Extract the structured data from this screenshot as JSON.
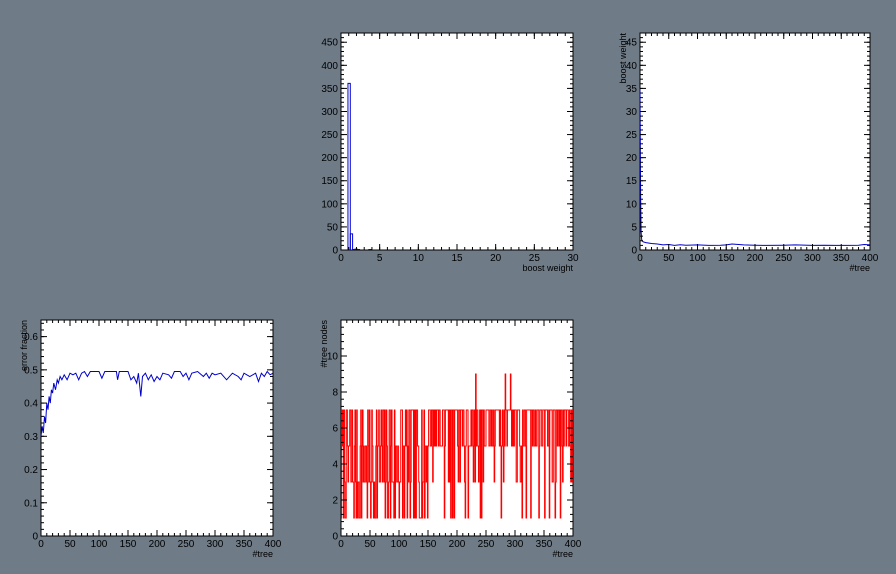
{
  "colors": {
    "background": "#6f7b87",
    "plot_background": "#ffffff",
    "blue_series": "#0000cc",
    "red_series": "#ff0000"
  },
  "chart_data": [
    {
      "id": "boost-weight-histogram",
      "type": "bar",
      "title": "",
      "xlabel": "boost weight",
      "ylabel": "",
      "xlim": [
        0,
        30
      ],
      "ylim": [
        0,
        470
      ],
      "xticks": [
        0,
        5,
        10,
        15,
        20,
        25,
        30
      ],
      "yticks": [
        0,
        50,
        100,
        150,
        200,
        250,
        300,
        350,
        400,
        450
      ],
      "bin_width": 0.3,
      "bins": [
        {
          "x0": 0.9,
          "value": 361
        },
        {
          "x0": 1.2,
          "value": 35
        },
        {
          "x0": 1.5,
          "value": 1
        },
        {
          "x0": 1.8,
          "value": 2
        },
        {
          "x0": 2.1,
          "value": 1
        },
        {
          "x0": 2.4,
          "value": 0
        },
        {
          "x0": 2.7,
          "value": 0
        },
        {
          "x0": 3.0,
          "value": 0
        },
        {
          "x0": 3.3,
          "value": 0
        },
        {
          "x0": 3.6,
          "value": 1
        }
      ],
      "series_color": "#0000cc"
    },
    {
      "id": "boost-weight-vs-tree",
      "type": "line",
      "title": "",
      "xlabel": "#tree",
      "ylabel": "boost weight",
      "xlim": [
        0,
        400
      ],
      "ylim": [
        0,
        47
      ],
      "xticks": [
        0,
        50,
        100,
        150,
        200,
        250,
        300,
        350,
        400
      ],
      "yticks": [
        0,
        5,
        10,
        15,
        20,
        25,
        30,
        35,
        40,
        45
      ],
      "points": [
        [
          0,
          35
        ],
        [
          1,
          12
        ],
        [
          2,
          4
        ],
        [
          3,
          2.2
        ],
        [
          5,
          1.8
        ],
        [
          10,
          1.6
        ],
        [
          20,
          1.4
        ],
        [
          30,
          1.3
        ],
        [
          40,
          1.1
        ],
        [
          50,
          1.2
        ],
        [
          60,
          1.0
        ],
        [
          70,
          1.15
        ],
        [
          80,
          1.05
        ],
        [
          100,
          1.1
        ],
        [
          120,
          1.0
        ],
        [
          140,
          1.05
        ],
        [
          150,
          1.1
        ],
        [
          160,
          1.3
        ],
        [
          180,
          1.1
        ],
        [
          200,
          1.05
        ],
        [
          220,
          1.0
        ],
        [
          250,
          1.05
        ],
        [
          270,
          1.1
        ],
        [
          300,
          1.0
        ],
        [
          320,
          1.05
        ],
        [
          340,
          1.0
        ],
        [
          360,
          1.0
        ],
        [
          380,
          1.05
        ],
        [
          390,
          1.2
        ],
        [
          400,
          1.1
        ]
      ],
      "series_color": "#0000cc"
    },
    {
      "id": "error-fraction-vs-tree",
      "type": "line",
      "title": "",
      "xlabel": "#tree",
      "ylabel": "error fraction",
      "xlim": [
        0,
        400
      ],
      "ylim": [
        0,
        0.65
      ],
      "xticks": [
        0,
        50,
        100,
        150,
        200,
        250,
        300,
        350,
        400
      ],
      "yticks": [
        0,
        0.1,
        0.2,
        0.3,
        0.4,
        0.5,
        0.6
      ],
      "points": [
        [
          0,
          0.3
        ],
        [
          2,
          0.33
        ],
        [
          4,
          0.31
        ],
        [
          6,
          0.36
        ],
        [
          8,
          0.34
        ],
        [
          10,
          0.4
        ],
        [
          12,
          0.38
        ],
        [
          14,
          0.42
        ],
        [
          16,
          0.4
        ],
        [
          18,
          0.44
        ],
        [
          20,
          0.43
        ],
        [
          22,
          0.46
        ],
        [
          25,
          0.44
        ],
        [
          28,
          0.47
        ],
        [
          30,
          0.46
        ],
        [
          33,
          0.48
        ],
        [
          36,
          0.47
        ],
        [
          40,
          0.485
        ],
        [
          45,
          0.47
        ],
        [
          50,
          0.49
        ],
        [
          55,
          0.485
        ],
        [
          60,
          0.49
        ],
        [
          65,
          0.47
        ],
        [
          70,
          0.49
        ],
        [
          75,
          0.495
        ],
        [
          80,
          0.48
        ],
        [
          85,
          0.495
        ],
        [
          100,
          0.495
        ],
        [
          105,
          0.475
        ],
        [
          110,
          0.495
        ],
        [
          130,
          0.495
        ],
        [
          132,
          0.47
        ],
        [
          135,
          0.495
        ],
        [
          150,
          0.495
        ],
        [
          155,
          0.47
        ],
        [
          160,
          0.48
        ],
        [
          165,
          0.46
        ],
        [
          168,
          0.49
        ],
        [
          170,
          0.455
        ],
        [
          172,
          0.42
        ],
        [
          175,
          0.48
        ],
        [
          180,
          0.49
        ],
        [
          185,
          0.47
        ],
        [
          190,
          0.485
        ],
        [
          195,
          0.465
        ],
        [
          200,
          0.48
        ],
        [
          205,
          0.47
        ],
        [
          210,
          0.49
        ],
        [
          220,
          0.485
        ],
        [
          225,
          0.475
        ],
        [
          230,
          0.495
        ],
        [
          240,
          0.495
        ],
        [
          245,
          0.48
        ],
        [
          250,
          0.49
        ],
        [
          255,
          0.47
        ],
        [
          260,
          0.49
        ],
        [
          270,
          0.495
        ],
        [
          280,
          0.48
        ],
        [
          285,
          0.49
        ],
        [
          290,
          0.475
        ],
        [
          295,
          0.49
        ],
        [
          300,
          0.485
        ],
        [
          310,
          0.49
        ],
        [
          320,
          0.47
        ],
        [
          330,
          0.49
        ],
        [
          340,
          0.48
        ],
        [
          345,
          0.47
        ],
        [
          350,
          0.49
        ],
        [
          360,
          0.48
        ],
        [
          370,
          0.49
        ],
        [
          375,
          0.465
        ],
        [
          380,
          0.49
        ],
        [
          385,
          0.48
        ],
        [
          390,
          0.495
        ],
        [
          395,
          0.485
        ],
        [
          400,
          0.49
        ]
      ],
      "series_color": "#0000cc"
    },
    {
      "id": "tree-nodes-vs-tree",
      "type": "line",
      "title": "",
      "xlabel": "#tree",
      "ylabel": "#tree nodes",
      "xlim": [
        0,
        400
      ],
      "ylim": [
        0,
        12
      ],
      "xticks": [
        0,
        50,
        100,
        150,
        200,
        250,
        300,
        350,
        400
      ],
      "yticks": [
        0,
        2,
        4,
        6,
        8,
        10
      ],
      "series_color": "#ff0000"
    }
  ]
}
